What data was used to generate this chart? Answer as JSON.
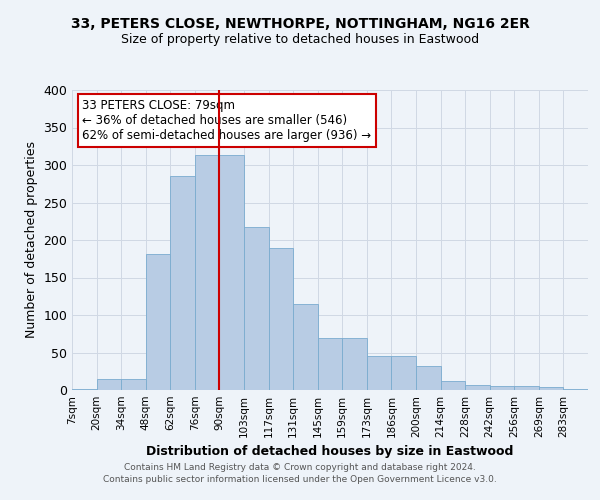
{
  "title": "33, PETERS CLOSE, NEWTHORPE, NOTTINGHAM, NG16 2ER",
  "subtitle": "Size of property relative to detached houses in Eastwood",
  "xlabel": "Distribution of detached houses by size in Eastwood",
  "ylabel": "Number of detached properties",
  "bin_labels": [
    "7sqm",
    "20sqm",
    "34sqm",
    "48sqm",
    "62sqm",
    "76sqm",
    "90sqm",
    "103sqm",
    "117sqm",
    "131sqm",
    "145sqm",
    "159sqm",
    "173sqm",
    "186sqm",
    "200sqm",
    "214sqm",
    "228sqm",
    "242sqm",
    "256sqm",
    "269sqm",
    "283sqm"
  ],
  "bar_heights": [
    2,
    15,
    15,
    182,
    285,
    313,
    313,
    217,
    190,
    115,
    70,
    70,
    45,
    45,
    32,
    12,
    7,
    5,
    5,
    4,
    2
  ],
  "bar_color": "#b8cce4",
  "bar_edge_color": "#7aabcf",
  "grid_color": "#d0d8e4",
  "background_color": "#eef3f9",
  "vline_x_index": 5,
  "vline_color": "#cc0000",
  "annotation_title": "33 PETERS CLOSE: 79sqm",
  "annotation_line1": "← 36% of detached houses are smaller (546)",
  "annotation_line2": "62% of semi-detached houses are larger (936) →",
  "annotation_box_color": "white",
  "annotation_box_edge_color": "#cc0000",
  "ylim": [
    0,
    400
  ],
  "yticks": [
    0,
    50,
    100,
    150,
    200,
    250,
    300,
    350,
    400
  ],
  "footer1": "Contains HM Land Registry data © Crown copyright and database right 2024.",
  "footer2": "Contains public sector information licensed under the Open Government Licence v3.0."
}
